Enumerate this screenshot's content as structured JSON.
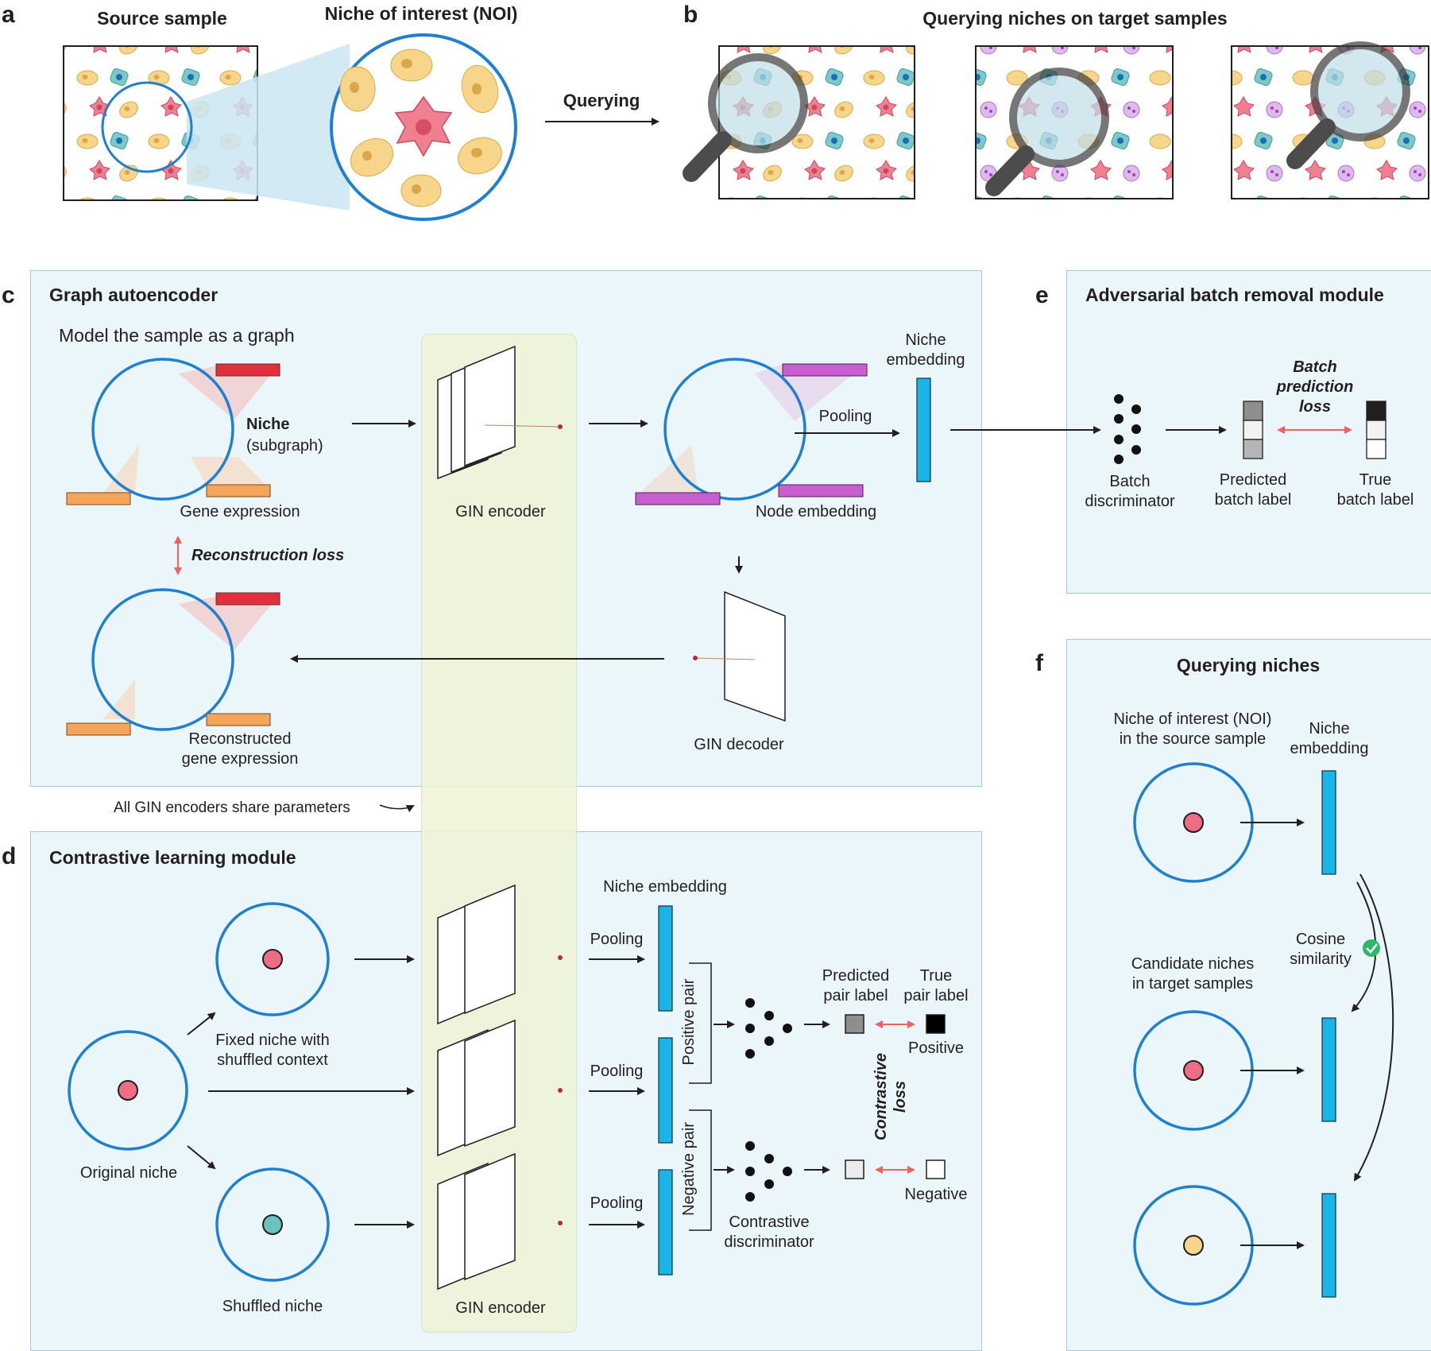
{
  "panel_a": {
    "letter": "a",
    "source_title": "Source sample",
    "noi_title": "Niche of interest (NOI)",
    "arrow_label": "Querying"
  },
  "panel_b": {
    "letter": "b",
    "title": "Querying niches on target samples"
  },
  "panel_c": {
    "letter": "c",
    "title": "Graph autoencoder",
    "subtitle": "Model the sample as a graph",
    "niche_bold": "Niche",
    "niche_sub": "(subgraph)",
    "gene_expression": "Gene expression",
    "gin_encoder": "GIN encoder",
    "node_embedding": "Node embedding",
    "pooling": "Pooling",
    "niche_embedding_line1": "Niche",
    "niche_embedding_line2": "embedding",
    "reconstruction_loss": "Reconstruction loss",
    "reconstructed_line1": "Reconstructed",
    "reconstructed_line2": "gene expression",
    "gin_decoder": "GIN decoder",
    "shared_note": "All GIN encoders share parameters"
  },
  "panel_d": {
    "letter": "d",
    "title": "Contrastive learning module",
    "fixed_line1": "Fixed niche with",
    "fixed_line2": "shuffled context",
    "original_niche": "Original niche",
    "shuffled_niche": "Shuffled niche",
    "gin_encoder": "GIN encoder",
    "niche_embedding": "Niche embedding",
    "pooling": "Pooling",
    "positive_pair": "Positive pair",
    "negative_pair": "Negative pair",
    "predicted_line1": "Predicted",
    "predicted_line2": "pair label",
    "true_line1": "True",
    "true_line2": "pair label",
    "positive": "Positive",
    "negative": "Negative",
    "contrastive_line1": "Contrastive",
    "contrastive_line2": "loss",
    "disc_line1": "Contrastive",
    "disc_line2": "discriminator"
  },
  "panel_e": {
    "letter": "e",
    "title": "Adversarial batch removal module",
    "loss_line1": "Batch",
    "loss_line2": "prediction",
    "loss_line3": "loss",
    "disc_line1": "Batch",
    "disc_line2": "discriminator",
    "pred_line1": "Predicted",
    "pred_line2": "batch label",
    "true_line1": "True",
    "true_line2": "batch label"
  },
  "panel_f": {
    "letter": "f",
    "title": "Querying niches",
    "noi_line1": "Niche of interest (NOI)",
    "noi_line2": "in the source sample",
    "emb_line1": "Niche",
    "emb_line2": "embedding",
    "cand_line1": "Candidate niches",
    "cand_line2": "in target samples",
    "cos_line1": "Cosine",
    "cos_line2": "similarity"
  },
  "colors": {
    "niche_circle": "#1f7fd0",
    "cell_yellow": "#f7d68c",
    "cell_pink": "#ee6d86",
    "cell_teal": "#6ac2c1",
    "gin_band": "#f0f5dc",
    "panel_bg": "#ebf6fa",
    "loss_arrow": "#f0605d",
    "embedding_cyan": "#19b5e6"
  }
}
